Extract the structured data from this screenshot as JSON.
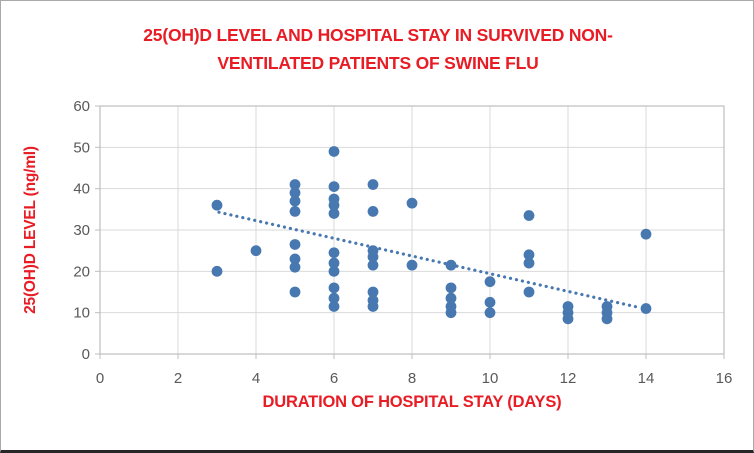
{
  "window": {
    "background_color": "#ffffff",
    "border_color": "#a9a9a9",
    "bottom_bar_color": "#262626"
  },
  "chart_data": {
    "type": "scatter",
    "title_line1": "25(OH)D LEVEL AND HOSPITAL STAY IN SURVIVED NON-",
    "title_line2": "VENTILATED PATIENTS OF SWINE FLU",
    "xlabel": "DURATION OF HOSPITAL STAY (DAYS)",
    "ylabel": "25(OH)D LEVEL (ng/ml)",
    "xlim": [
      0,
      16
    ],
    "ylim": [
      0,
      60
    ],
    "x_ticks": [
      0,
      2,
      4,
      6,
      8,
      10,
      12,
      14,
      16
    ],
    "y_ticks": [
      0,
      10,
      20,
      30,
      40,
      50,
      60
    ],
    "grid": true,
    "legend_position": "none",
    "title_color": "#e81c24",
    "axis_label_color": "#e81c24",
    "tick_label_color": "#595959",
    "grid_color": "#d9d9d9",
    "axis_line_color": "#bfbfbf",
    "point_color": "#4878b0",
    "point_radius": 5.4,
    "points": [
      {
        "x": 3,
        "y": 36
      },
      {
        "x": 3,
        "y": 20
      },
      {
        "x": 4,
        "y": 25
      },
      {
        "x": 5,
        "y": 41
      },
      {
        "x": 5,
        "y": 39
      },
      {
        "x": 5,
        "y": 37
      },
      {
        "x": 5,
        "y": 34.5
      },
      {
        "x": 5,
        "y": 26.5
      },
      {
        "x": 5,
        "y": 23
      },
      {
        "x": 5,
        "y": 21
      },
      {
        "x": 5,
        "y": 15
      },
      {
        "x": 6,
        "y": 49
      },
      {
        "x": 6,
        "y": 40.5
      },
      {
        "x": 6,
        "y": 37.5
      },
      {
        "x": 6,
        "y": 36
      },
      {
        "x": 6,
        "y": 34
      },
      {
        "x": 6,
        "y": 24.5
      },
      {
        "x": 6,
        "y": 22
      },
      {
        "x": 6,
        "y": 20
      },
      {
        "x": 6,
        "y": 16
      },
      {
        "x": 6,
        "y": 13.5
      },
      {
        "x": 6,
        "y": 11.5
      },
      {
        "x": 7,
        "y": 41
      },
      {
        "x": 7,
        "y": 34.5
      },
      {
        "x": 7,
        "y": 25
      },
      {
        "x": 7,
        "y": 23.5
      },
      {
        "x": 7,
        "y": 21.5
      },
      {
        "x": 7,
        "y": 15
      },
      {
        "x": 7,
        "y": 13
      },
      {
        "x": 7,
        "y": 11.5
      },
      {
        "x": 8,
        "y": 36.5
      },
      {
        "x": 8,
        "y": 21.5
      },
      {
        "x": 9,
        "y": 21.5
      },
      {
        "x": 9,
        "y": 16
      },
      {
        "x": 9,
        "y": 13.5
      },
      {
        "x": 9,
        "y": 11.5
      },
      {
        "x": 9,
        "y": 10
      },
      {
        "x": 10,
        "y": 17.5
      },
      {
        "x": 10,
        "y": 12.5
      },
      {
        "x": 10,
        "y": 10
      },
      {
        "x": 11,
        "y": 33.5
      },
      {
        "x": 11,
        "y": 24
      },
      {
        "x": 11,
        "y": 22
      },
      {
        "x": 11,
        "y": 15
      },
      {
        "x": 12,
        "y": 11.5
      },
      {
        "x": 12,
        "y": 10
      },
      {
        "x": 12,
        "y": 8.5
      },
      {
        "x": 13,
        "y": 11.5
      },
      {
        "x": 13,
        "y": 10
      },
      {
        "x": 13,
        "y": 8.5
      },
      {
        "x": 14,
        "y": 29
      },
      {
        "x": 14,
        "y": 11
      }
    ],
    "trendline": {
      "style": "dotted",
      "x1": 3.05,
      "y1": 34.3,
      "x2": 13.85,
      "y2": 11.2
    }
  }
}
